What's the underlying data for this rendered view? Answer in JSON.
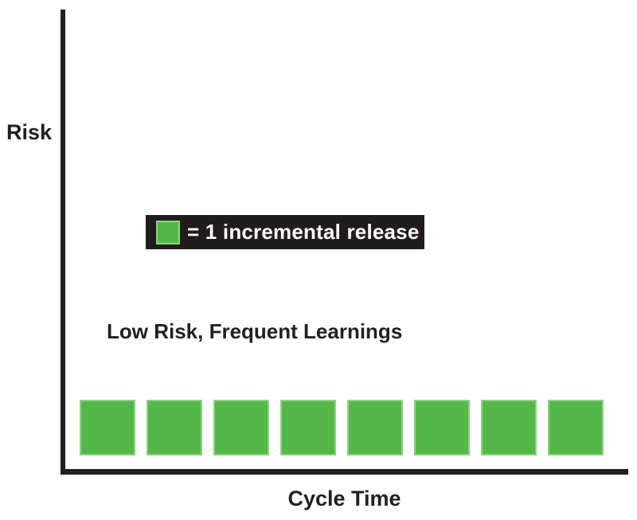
{
  "colors": {
    "green": "#53b848",
    "green_border": "#8fd086",
    "ink": "#231f20",
    "legend_bg": "#201c1d",
    "text_on_dark": "#ffffff",
    "background": "#ffffff"
  },
  "labels": {
    "y_axis": "Risk",
    "x_axis": "Cycle Time",
    "annotation": "Low Risk, Frequent Learnings",
    "legend": "= 1 incremental release"
  },
  "chart_data": {
    "type": "scatter",
    "title": "",
    "xlabel": "Cycle Time",
    "ylabel": "Risk",
    "annotations": [
      "Low Risk, Frequent Learnings"
    ],
    "legend": [
      {
        "swatch": "green-square",
        "swatch_color": "#53b848",
        "label": "= 1 incremental release"
      }
    ],
    "axes": {
      "x_ticks": [],
      "y_ticks": [],
      "grid": false,
      "style": "conceptual unlabeled axes, solid black lines"
    },
    "series": [
      {
        "name": "incremental releases",
        "marker": "square",
        "color": "#53b848",
        "count": 8,
        "description": "8 equal green squares evenly spaced along the Cycle Time axis at a constant low Risk level",
        "points": [
          {
            "x": 1,
            "risk": "low"
          },
          {
            "x": 2,
            "risk": "low"
          },
          {
            "x": 3,
            "risk": "low"
          },
          {
            "x": 4,
            "risk": "low"
          },
          {
            "x": 5,
            "risk": "low"
          },
          {
            "x": 6,
            "risk": "low"
          },
          {
            "x": 7,
            "risk": "low"
          },
          {
            "x": 8,
            "risk": "low"
          }
        ]
      }
    ]
  }
}
